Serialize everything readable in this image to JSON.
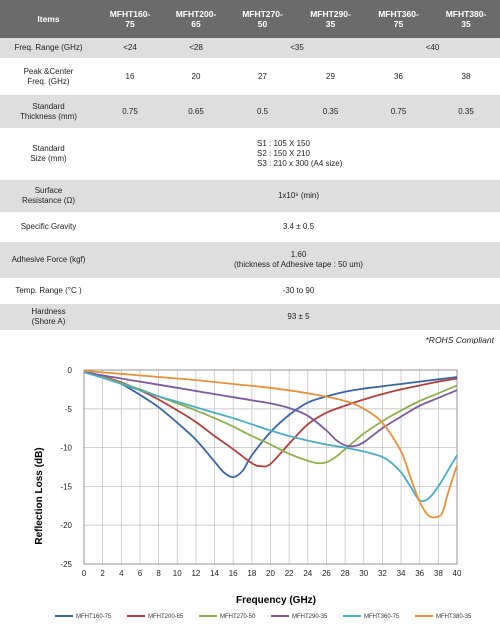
{
  "table": {
    "headers": [
      "Items",
      "MFHT160-\n75",
      "MFHT200-\n65",
      "MFHT270-\n50",
      "MFHT290-\n35",
      "MFHT360-\n75",
      "MFHT380-\n35"
    ],
    "rows": [
      {
        "label": "Freq. Range (GHz)",
        "cells": [
          {
            "text": "<24",
            "span": 1
          },
          {
            "text": "<28",
            "span": 1
          },
          {
            "text": "<35",
            "span": 2
          },
          {
            "text": "<40",
            "span": 2
          }
        ]
      },
      {
        "label": "Peak &Center\nFreq. (GHz)",
        "cells": [
          {
            "text": "16",
            "span": 1
          },
          {
            "text": "20",
            "span": 1
          },
          {
            "text": "27",
            "span": 1
          },
          {
            "text": "29",
            "span": 1
          },
          {
            "text": "36",
            "span": 1
          },
          {
            "text": "38",
            "span": 1
          }
        ]
      },
      {
        "label": "Standard\nThickness (mm)",
        "cells": [
          {
            "text": "0.75",
            "span": 1
          },
          {
            "text": "0.65",
            "span": 1
          },
          {
            "text": "0.5",
            "span": 1
          },
          {
            "text": "0.35",
            "span": 1
          },
          {
            "text": "0.75",
            "span": 1
          },
          {
            "text": "0.35",
            "span": 1
          }
        ]
      },
      {
        "label": "Standard\nSize (mm)",
        "cells": [
          {
            "text": "S1 : 105 X 150\nS2 : 150 X 210\nS3 : 210 x 300 (A4 size)",
            "span": 6,
            "align": "left"
          }
        ]
      },
      {
        "label": "Surface\nResistance (Ω)",
        "cells": [
          {
            "text": "1x10⁶ (min)",
            "span": 6
          }
        ]
      },
      {
        "label": "Specific Gravity",
        "cells": [
          {
            "text": "3.4 ± 0.5",
            "span": 6
          }
        ]
      },
      {
        "label": "Adhesive Force (kgf)",
        "cells": [
          {
            "text": "1.60\n(thickness of Adhesive tape : 50 um)",
            "span": 6
          }
        ]
      },
      {
        "label": "Temp. Range (°C )",
        "cells": [
          {
            "text": "-30  to 90",
            "span": 6
          }
        ]
      },
      {
        "label": "Hardness\n(Shore A)",
        "cells": [
          {
            "text": "93 ± 5",
            "span": 6
          }
        ]
      }
    ]
  },
  "rohs_note": "*ROHS Compliant",
  "chart_data": {
    "type": "line",
    "xlabel": "Frequency (GHz)",
    "ylabel": "Reflection Loss (dB)",
    "xlim": [
      0,
      40
    ],
    "ylim": [
      -25,
      0
    ],
    "xticks": [
      0,
      2,
      4,
      6,
      8,
      10,
      12,
      14,
      16,
      18,
      20,
      22,
      24,
      26,
      28,
      30,
      32,
      34,
      36,
      38,
      40
    ],
    "yticks": [
      0,
      -5,
      -10,
      -15,
      -20,
      -25
    ],
    "grid": true,
    "legend_position": "bottom",
    "series": [
      {
        "name": "MFHT160-75",
        "color": "#3a66a8",
        "x": [
          0,
          2,
          4,
          6,
          8,
          10,
          12,
          14,
          15,
          16,
          17,
          18,
          20,
          22,
          24,
          26,
          28,
          30,
          32,
          34,
          36,
          38,
          40
        ],
        "y": [
          -0.2,
          -0.8,
          -1.8,
          -3.2,
          -4.8,
          -6.8,
          -9,
          -11.8,
          -13.2,
          -13.8,
          -13,
          -11,
          -8,
          -5.8,
          -4.2,
          -3.4,
          -2.8,
          -2.4,
          -2.1,
          -1.8,
          -1.5,
          -1.2,
          -0.9
        ]
      },
      {
        "name": "MFHT200-65",
        "color": "#b0403c",
        "x": [
          0,
          2,
          4,
          6,
          8,
          10,
          12,
          14,
          16,
          18,
          19,
          20,
          22,
          24,
          26,
          28,
          30,
          32,
          34,
          36,
          38,
          40
        ],
        "y": [
          -0.2,
          -0.8,
          -1.6,
          -2.6,
          -3.8,
          -5.2,
          -6.7,
          -8.5,
          -10.2,
          -12,
          -12.4,
          -12.1,
          -9.5,
          -7,
          -5.5,
          -4.6,
          -3.8,
          -3.1,
          -2.5,
          -2,
          -1.5,
          -1.1
        ]
      },
      {
        "name": "MFHT270-50",
        "color": "#8fb04a",
        "x": [
          0,
          2,
          4,
          6,
          8,
          10,
          12,
          14,
          16,
          18,
          20,
          22,
          24,
          25,
          26,
          27,
          28,
          30,
          32,
          34,
          36,
          38,
          40
        ],
        "y": [
          -0.3,
          -0.9,
          -1.7,
          -2.5,
          -3.4,
          -4.3,
          -5.2,
          -6.2,
          -7.3,
          -8.5,
          -9.6,
          -10.8,
          -11.7,
          -12,
          -11.9,
          -11.2,
          -10.2,
          -8.2,
          -6.6,
          -5.2,
          -4,
          -3,
          -2
        ]
      },
      {
        "name": "MFHT290-35",
        "color": "#7b5a9e",
        "x": [
          0,
          2,
          4,
          6,
          8,
          10,
          12,
          14,
          16,
          18,
          20,
          22,
          24,
          26,
          27,
          28,
          29,
          30,
          32,
          34,
          36,
          38,
          40
        ],
        "y": [
          -0.3,
          -0.7,
          -1.1,
          -1.5,
          -1.9,
          -2.3,
          -2.7,
          -3.1,
          -3.5,
          -3.9,
          -4.3,
          -4.9,
          -5.9,
          -7.8,
          -9,
          -9.7,
          -9.8,
          -9.3,
          -7.5,
          -6,
          -4.6,
          -3.6,
          -2.6
        ]
      },
      {
        "name": "MFHT360-75",
        "color": "#4bacc6",
        "x": [
          0,
          2,
          4,
          6,
          8,
          10,
          12,
          14,
          16,
          18,
          20,
          22,
          24,
          26,
          28,
          30,
          32,
          33,
          34,
          35,
          36,
          37,
          38,
          39,
          40
        ],
        "y": [
          -0.3,
          -1,
          -1.8,
          -2.6,
          -3.4,
          -4.1,
          -4.8,
          -5.5,
          -6.2,
          -7,
          -7.8,
          -8.5,
          -9.1,
          -9.6,
          -10,
          -10.5,
          -11.2,
          -12,
          -13.2,
          -15,
          -16.8,
          -16.5,
          -15,
          -13,
          -11
        ]
      },
      {
        "name": "MFHT380-35",
        "color": "#e8913a",
        "x": [
          0,
          4,
          8,
          12,
          16,
          20,
          24,
          28,
          30,
          32,
          34,
          35,
          36,
          37,
          38,
          38.5,
          39,
          40
        ],
        "y": [
          -0.1,
          -0.5,
          -0.9,
          -1.3,
          -1.8,
          -2.3,
          -3,
          -4,
          -5,
          -6.8,
          -10.5,
          -13.8,
          -17,
          -18.8,
          -18.9,
          -18.2,
          -16,
          -12.3
        ]
      }
    ]
  }
}
